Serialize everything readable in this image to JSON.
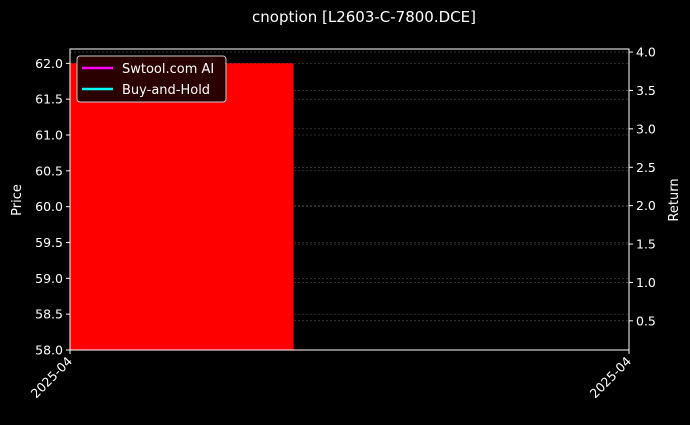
{
  "chart_data": {
    "type": "bar",
    "title": "cnoption [L2603-C-7800.DCE]",
    "xlabel": "",
    "ylabel": "Price",
    "y2label": "Return",
    "x_tick_labels": [
      "2025-04",
      "2025-04"
    ],
    "ylim": [
      58.0,
      62.2
    ],
    "y_ticks": [
      58.0,
      58.5,
      59.0,
      59.5,
      60.0,
      60.5,
      61.0,
      61.5,
      62.0
    ],
    "y2lim": [
      0.12,
      4.04
    ],
    "y2_ticks": [
      0.5,
      1.0,
      1.5,
      2.0,
      2.5,
      3.0,
      3.5,
      4.0
    ],
    "bars": [
      {
        "x_start_fraction": 0,
        "x_end_fraction": 0.4,
        "value": 62.0,
        "color": "#ff0000"
      }
    ],
    "series": [
      {
        "name": "Swtool.com AI",
        "color": "#ff00ff",
        "values": []
      },
      {
        "name": "Buy-and-Hold",
        "color": "#00ffff",
        "values": []
      }
    ],
    "grid": true,
    "legend_position": "top-left",
    "background": "#000000"
  }
}
